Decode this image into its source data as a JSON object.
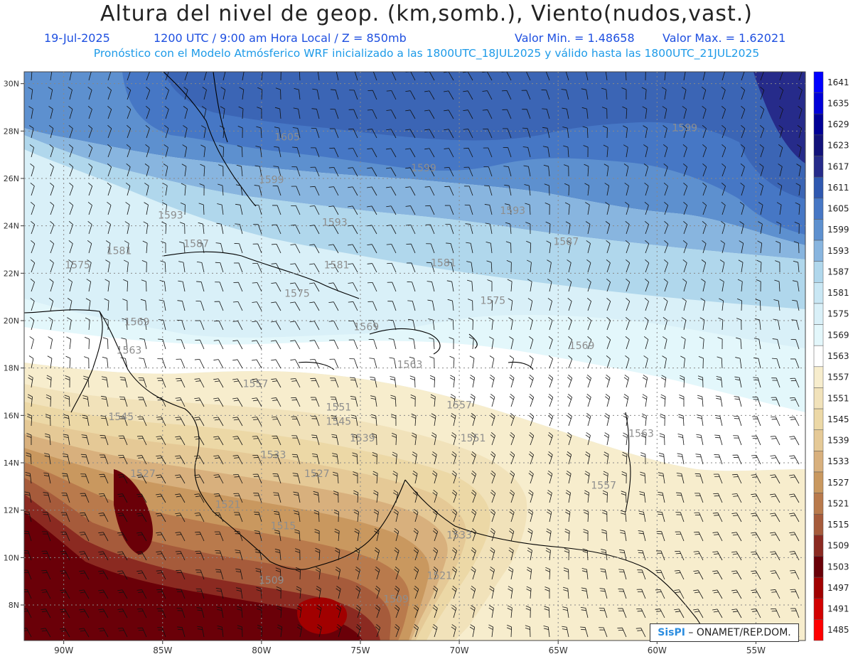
{
  "header": {
    "title": "Altura del nivel de geop. (km,somb.), Viento(nudos,vast.)",
    "date": "19-Jul-2025",
    "time": "1200 UTC / 9:00 am Hora Local / Z = 850mb",
    "min_label": "Valor Min. = 1.48658",
    "max_label": "Valor Max. = 1.62021",
    "forecast_line": "Pronóstico con el Modelo Atmósferico WRF inicializado a las 1800UTC_18JUL2025 y válido hasta las  1800UTC_21JUL2025"
  },
  "credit": {
    "brand": "SisPI",
    "text": "– ONAMET/REP.DOM."
  },
  "map_data": {
    "lon_range": [
      -92,
      -52.5
    ],
    "lat_range": [
      6.5,
      30.5
    ],
    "lon_ticks": [
      "90W",
      "85W",
      "80W",
      "75W",
      "70W",
      "65W",
      "60W",
      "55W"
    ],
    "lon_tick_values": [
      -90,
      -85,
      -80,
      -75,
      -70,
      -65,
      -60,
      -55
    ],
    "lat_ticks": [
      "30N",
      "28N",
      "26N",
      "24N",
      "22N",
      "20N",
      "18N",
      "16N",
      "14N",
      "12N",
      "10N",
      "8N"
    ],
    "lat_tick_values": [
      30,
      28,
      26,
      24,
      22,
      20,
      18,
      16,
      14,
      12,
      10,
      8
    ],
    "contour_labels": [
      {
        "text": "1605",
        "lon": -78.7,
        "lat": 27.6
      },
      {
        "text": "1599",
        "lon": -79.5,
        "lat": 25.8
      },
      {
        "text": "1599",
        "lon": -71.8,
        "lat": 26.3
      },
      {
        "text": "1599",
        "lon": -58.6,
        "lat": 28.0
      },
      {
        "text": "1593",
        "lon": -84.6,
        "lat": 24.3
      },
      {
        "text": "1593",
        "lon": -76.3,
        "lat": 24.0
      },
      {
        "text": "1593",
        "lon": -67.3,
        "lat": 24.5
      },
      {
        "text": "1587",
        "lon": -83.3,
        "lat": 23.1
      },
      {
        "text": "1587",
        "lon": -64.6,
        "lat": 23.2
      },
      {
        "text": "1581",
        "lon": -87.2,
        "lat": 22.8
      },
      {
        "text": "1581",
        "lon": -76.2,
        "lat": 22.2
      },
      {
        "text": "1581",
        "lon": -70.8,
        "lat": 22.3
      },
      {
        "text": "1575",
        "lon": -89.3,
        "lat": 22.2
      },
      {
        "text": "1575",
        "lon": -78.2,
        "lat": 21.0
      },
      {
        "text": "1575",
        "lon": -68.3,
        "lat": 20.7
      },
      {
        "text": "1569",
        "lon": -86.3,
        "lat": 19.8
      },
      {
        "text": "1569",
        "lon": -74.7,
        "lat": 19.6
      },
      {
        "text": "1569",
        "lon": -63.8,
        "lat": 18.8
      },
      {
        "text": "1563",
        "lon": -86.7,
        "lat": 18.6
      },
      {
        "text": "1563",
        "lon": -72.5,
        "lat": 18.0
      },
      {
        "text": "1563",
        "lon": -60.8,
        "lat": 15.1
      },
      {
        "text": "1557",
        "lon": -80.3,
        "lat": 17.2
      },
      {
        "text": "1557",
        "lon": -70.0,
        "lat": 16.3
      },
      {
        "text": "1557",
        "lon": -62.7,
        "lat": 12.9
      },
      {
        "text": "1551",
        "lon": -76.1,
        "lat": 16.2
      },
      {
        "text": "1551",
        "lon": -69.3,
        "lat": 14.9
      },
      {
        "text": "1545",
        "lon": -87.1,
        "lat": 15.8
      },
      {
        "text": "1545",
        "lon": -76.1,
        "lat": 15.6
      },
      {
        "text": "1539",
        "lon": -74.9,
        "lat": 14.9
      },
      {
        "text": "1533",
        "lon": -79.4,
        "lat": 14.2
      },
      {
        "text": "1527",
        "lon": -86.0,
        "lat": 13.4
      },
      {
        "text": "1527",
        "lon": -77.2,
        "lat": 13.4
      },
      {
        "text": "1521",
        "lon": -81.7,
        "lat": 12.1
      },
      {
        "text": "1521",
        "lon": -71.0,
        "lat": 9.1
      },
      {
        "text": "1515",
        "lon": -78.9,
        "lat": 11.2
      },
      {
        "text": "1533",
        "lon": -70.0,
        "lat": 10.8
      },
      {
        "text": "1509",
        "lon": -79.5,
        "lat": 8.9
      },
      {
        "text": "1509",
        "lon": -73.2,
        "lat": 8.1
      }
    ]
  },
  "legend": {
    "levels": [
      "1641",
      "1635",
      "1629",
      "1623",
      "1617",
      "1611",
      "1605",
      "1599",
      "1593",
      "1587",
      "1581",
      "1575",
      "1569",
      "1563",
      "1557",
      "1551",
      "1545",
      "1539",
      "1533",
      "1527",
      "1521",
      "1515",
      "1509",
      "1503",
      "1497",
      "1491",
      "1485"
    ],
    "colors": [
      "#0000ff",
      "#0000d8",
      "#000096",
      "#12127a",
      "#262b8a",
      "#2f58b0",
      "#4677c5",
      "#5d90cf",
      "#88b5df",
      "#b0d7ec",
      "#c9e7f4",
      "#d9f0f8",
      "#e3f7fb",
      "#ffffff",
      "#f7edcd",
      "#f1e2ba",
      "#ecd8a6",
      "#e5c996",
      "#d8b07d",
      "#c9985f",
      "#b97a4c",
      "#a65b3b",
      "#8b2a21",
      "#6a0008",
      "#a10000",
      "#d20000",
      "#ff0000"
    ]
  }
}
